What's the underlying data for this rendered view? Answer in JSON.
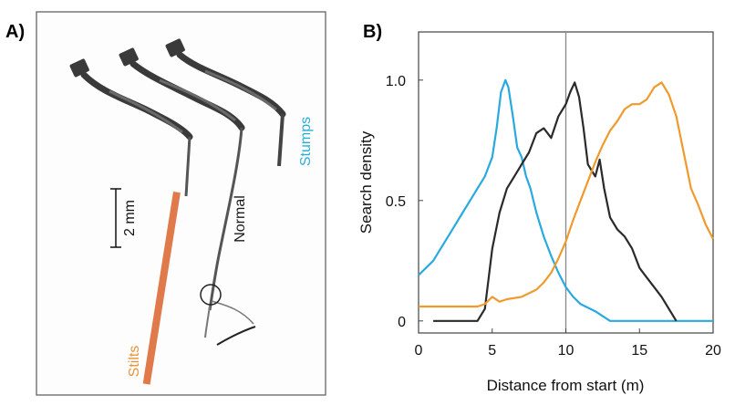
{
  "panels": {
    "a_label": "A)",
    "b_label": "B)"
  },
  "panel_a": {
    "scale_bar": "2 mm",
    "legs": [
      {
        "label": "Stilts",
        "color": "#E8943A"
      },
      {
        "label": "Normal",
        "color": "#1a1a1a"
      },
      {
        "label": "Stumps",
        "color": "#2AAFD8"
      }
    ],
    "leg_shaft_color": "#E07A4A"
  },
  "chart_data": {
    "type": "line",
    "xlabel": "Distance from start  (m)",
    "ylabel": "Search density",
    "xlim": [
      0,
      20
    ],
    "ylim": [
      -0.05,
      1.2
    ],
    "xticks": [
      0,
      5,
      10,
      15,
      20
    ],
    "yticks": [
      0,
      0.5,
      1.0
    ],
    "ytick_labels": [
      "0",
      "0.5",
      "1.0"
    ],
    "reference_line_x": 10,
    "series": [
      {
        "color": "#29A9E0",
        "x": [
          0,
          0.5,
          1,
          1.5,
          2,
          2.5,
          3,
          3.5,
          4,
          4.5,
          5,
          5.3,
          5.6,
          5.9,
          6.1,
          6.4,
          6.7,
          7,
          7.3,
          7.6,
          8,
          8.5,
          9,
          9.5,
          10,
          10.5,
          11,
          12,
          13,
          14,
          16,
          18,
          20
        ],
        "y": [
          0.19,
          0.22,
          0.25,
          0.3,
          0.35,
          0.4,
          0.45,
          0.5,
          0.55,
          0.6,
          0.68,
          0.8,
          0.95,
          1.0,
          0.97,
          0.85,
          0.72,
          0.68,
          0.6,
          0.55,
          0.45,
          0.35,
          0.27,
          0.2,
          0.14,
          0.1,
          0.07,
          0.04,
          0.0,
          0.0,
          0.0,
          0.0,
          0.0
        ]
      },
      {
        "color": "#2a2a2a",
        "x": [
          1,
          2,
          3,
          4,
          4.5,
          5,
          5.5,
          6,
          6.5,
          7,
          7.5,
          8,
          8.5,
          9,
          9.5,
          10,
          10.3,
          10.6,
          10.9,
          11.2,
          11.5,
          12,
          12.3,
          12.6,
          13,
          13.5,
          14,
          14.5,
          15,
          15.5,
          16,
          16.5,
          17,
          17.5
        ],
        "y": [
          0.0,
          0.0,
          0.0,
          0.0,
          0.05,
          0.3,
          0.45,
          0.55,
          0.6,
          0.65,
          0.7,
          0.78,
          0.8,
          0.76,
          0.85,
          0.9,
          0.95,
          0.99,
          0.93,
          0.8,
          0.65,
          0.6,
          0.67,
          0.55,
          0.43,
          0.38,
          0.35,
          0.3,
          0.22,
          0.18,
          0.14,
          0.1,
          0.05,
          0.0
        ]
      },
      {
        "color": "#F09A2E",
        "x": [
          0,
          1,
          2,
          3,
          4,
          4.5,
          5,
          5.5,
          6,
          7,
          8,
          8.5,
          9,
          9.5,
          10,
          10.5,
          11,
          11.5,
          12,
          12.5,
          13,
          13.5,
          14,
          14.5,
          15,
          15.5,
          16,
          16.5,
          17,
          17.5,
          18,
          18.5,
          19,
          19.5,
          20
        ],
        "y": [
          0.06,
          0.06,
          0.06,
          0.06,
          0.06,
          0.07,
          0.1,
          0.08,
          0.09,
          0.1,
          0.13,
          0.16,
          0.2,
          0.26,
          0.33,
          0.42,
          0.5,
          0.58,
          0.66,
          0.73,
          0.79,
          0.83,
          0.88,
          0.9,
          0.9,
          0.92,
          0.97,
          0.99,
          0.94,
          0.85,
          0.7,
          0.55,
          0.48,
          0.4,
          0.34
        ]
      }
    ]
  }
}
